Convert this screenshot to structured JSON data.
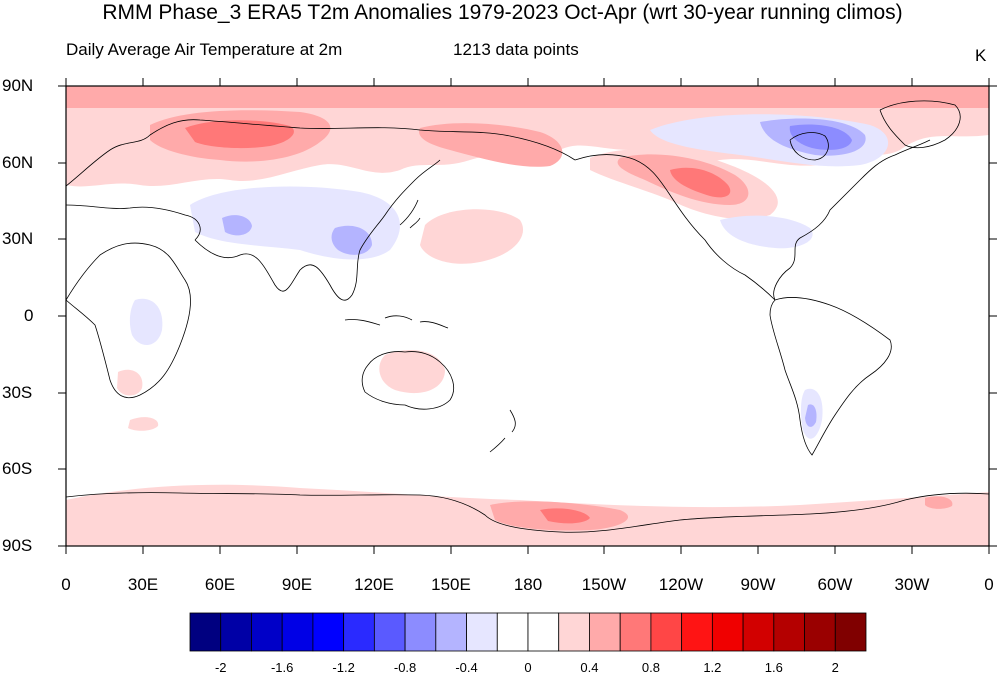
{
  "figure": {
    "title": "RMM Phase_3 ERA5 T2m Anomalies 1979-2023 Oct-Apr (wrt 30-year running climos)",
    "subtitle_left": "Daily Average Air Temperature at 2m",
    "subtitle_center": "1213 data points",
    "units": "K"
  },
  "map": {
    "projection": "cylindrical-equidistant",
    "center_longitude": 180,
    "lat_labels": [
      "90N",
      "60N",
      "30N",
      "0",
      "30S",
      "60S",
      "90S"
    ],
    "lon_labels": [
      "0",
      "30E",
      "60E",
      "90E",
      "120E",
      "150E",
      "180",
      "150W",
      "120W",
      "90W",
      "60W",
      "30W",
      "0"
    ],
    "coastlines": "shown",
    "anomaly_regions": [
      {
        "name": "Arctic belt warm",
        "sign": "warm",
        "level": 0.4
      },
      {
        "name": "Scandinavia / West Russia warm",
        "sign": "warm",
        "level": 1.0
      },
      {
        "name": "East Siberia warm",
        "sign": "warm",
        "level": 0.8
      },
      {
        "name": "Western Canada warm",
        "sign": "warm",
        "level": 1.0
      },
      {
        "name": "North Pacific warm",
        "sign": "warm",
        "level": 0.4
      },
      {
        "name": "Hudson Bay / Labrador cold",
        "sign": "cold",
        "level": -0.8
      },
      {
        "name": "Central Asia / China cold",
        "sign": "cold",
        "level": -0.4
      },
      {
        "name": "Eastern US cold",
        "sign": "cold",
        "level": -0.2
      },
      {
        "name": "Patagonia cold",
        "sign": "cold",
        "level": -0.4
      },
      {
        "name": "Antarctica warm",
        "sign": "warm",
        "level": 0.6
      }
    ]
  },
  "colorbar": {
    "colors": [
      "#000080",
      "#0000a6",
      "#0000c8",
      "#0000e6",
      "#0000ff",
      "#2a2aff",
      "#5a5aff",
      "#8c8cff",
      "#b4b4ff",
      "#e6e6ff",
      "#ffffff",
      "#ffffff",
      "#ffd6d6",
      "#ffaaaa",
      "#ff7878",
      "#ff4646",
      "#ff1414",
      "#f00000",
      "#d20000",
      "#b40000",
      "#9a0000",
      "#800000"
    ],
    "tick_labels": [
      "-2",
      "-1.6",
      "-1.2",
      "-0.8",
      "-0.4",
      "0",
      "0.4",
      "0.8",
      "1.2",
      "1.6",
      "2"
    ]
  }
}
